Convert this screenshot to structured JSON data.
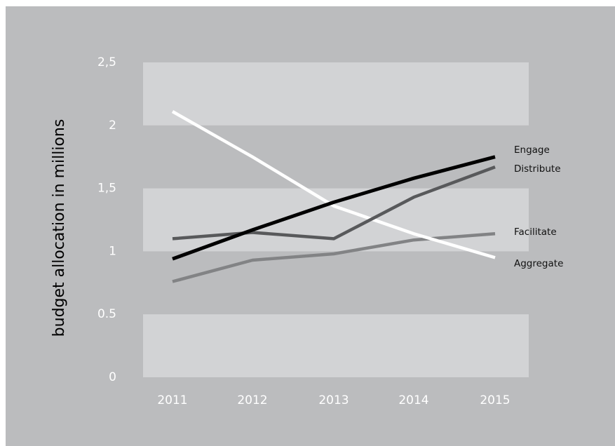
{
  "chart_data": {
    "type": "line",
    "ylabel": "budget allocation in millions",
    "x": [
      "2011",
      "2012",
      "2013",
      "2014",
      "2015"
    ],
    "ylim": [
      0,
      2.5
    ],
    "y_ticks": [
      {
        "value": 0,
        "label": "0"
      },
      {
        "value": 0.5,
        "label": "0.5"
      },
      {
        "value": 1,
        "label": "1"
      },
      {
        "value": 1.5,
        "label": "1,5"
      },
      {
        "value": 2,
        "label": "2"
      },
      {
        "value": 2.5,
        "label": "2,5"
      }
    ],
    "grid": "alternating horizontal bands",
    "legend": "series names labelled at the right end of each line",
    "series": [
      {
        "name": "Engage",
        "values": [
          0.94,
          1.17,
          1.39,
          1.58,
          1.75
        ],
        "color": "#000000"
      },
      {
        "name": "Distribute",
        "values": [
          1.1,
          1.15,
          1.1,
          1.43,
          1.67
        ],
        "color": "#58595b"
      },
      {
        "name": "Facilitate",
        "values": [
          0.76,
          0.93,
          0.98,
          1.09,
          1.14
        ],
        "color": "#828385"
      },
      {
        "name": "Aggregate",
        "values": [
          2.11,
          1.75,
          1.36,
          1.14,
          0.95
        ],
        "color": "#ffffff"
      }
    ],
    "colors": {
      "background": "#bbbcbe",
      "band": "#d2d3d5"
    }
  }
}
